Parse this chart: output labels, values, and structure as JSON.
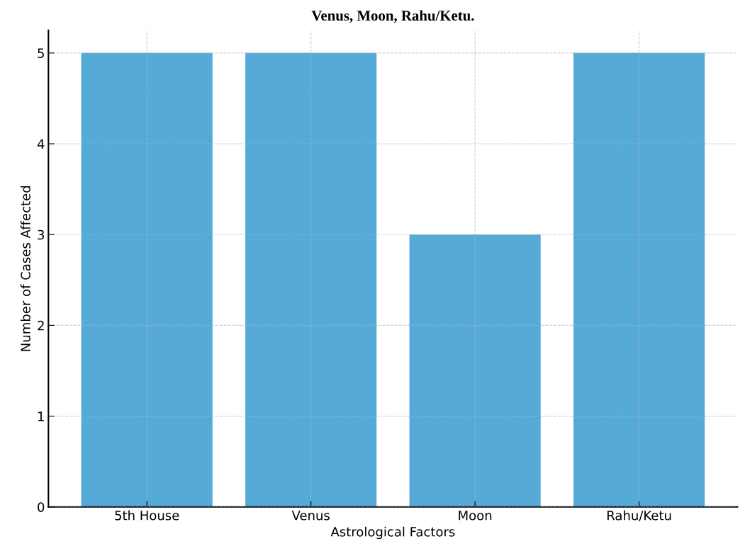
{
  "chart_data": {
    "type": "bar",
    "title": "Venus, Moon, Rahu/Ketu.",
    "xlabel": "Astrological Factors",
    "ylabel": "Number of Cases Affected",
    "categories": [
      "5th House",
      "Venus",
      "Moon",
      "Rahu/Ketu"
    ],
    "values": [
      5,
      5,
      3,
      5
    ],
    "color": "#56aad8",
    "ylim": [
      0,
      5.25
    ],
    "yticks": [
      0,
      1,
      2,
      3,
      4,
      5
    ],
    "grid": true
  }
}
